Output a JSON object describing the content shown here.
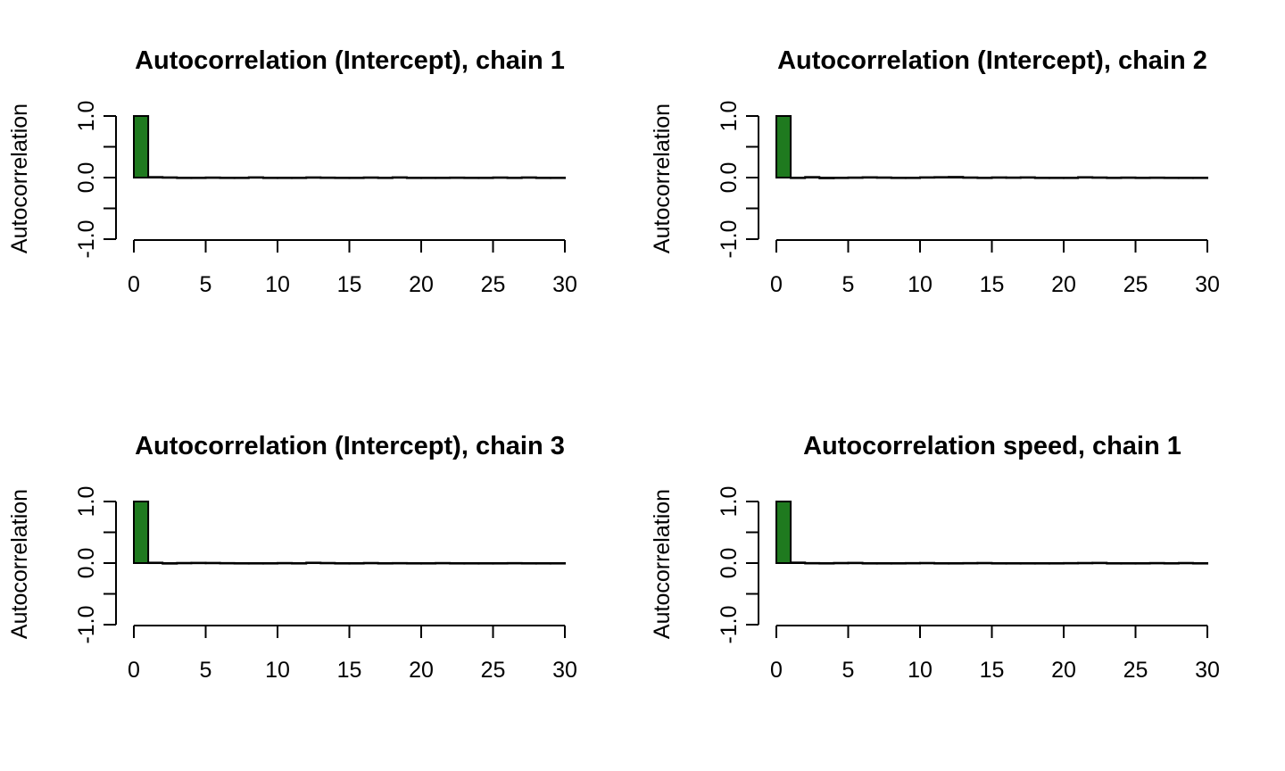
{
  "colors": {
    "bar_fill": "#1f7a1f",
    "axis": "#000000"
  },
  "chart_data": [
    {
      "type": "bar",
      "title": "Autocorrelation (Intercept), chain 1",
      "ylabel": "Autocorrelation",
      "xlabel": "",
      "xlim": [
        0,
        30
      ],
      "ylim": [
        -1,
        1
      ],
      "x_ticks": [
        "0",
        "5",
        "10",
        "15",
        "20",
        "25",
        "30"
      ],
      "y_ticks": [
        "-1.0",
        "",
        "0.0",
        "",
        "1.0"
      ],
      "lags": [
        0,
        1,
        2,
        3,
        4,
        5,
        6,
        7,
        8,
        9,
        10,
        11,
        12,
        13,
        14,
        15,
        16,
        17,
        18,
        19,
        20,
        21,
        22,
        23,
        24,
        25,
        26,
        27,
        28,
        29
      ],
      "values": [
        1.0,
        0.01,
        0.005,
        -0.005,
        0.0,
        0.003,
        -0.002,
        0.0,
        0.006,
        -0.004,
        -0.006,
        -0.002,
        0.005,
        0.002,
        -0.003,
        0.0,
        0.004,
        -0.003,
        0.006,
        -0.002,
        0.0,
        -0.005,
        0.002,
        0.0,
        -0.003,
        0.004,
        0.0,
        0.005,
        -0.002,
        0.0
      ]
    },
    {
      "type": "bar",
      "title": "Autocorrelation (Intercept), chain 2",
      "ylabel": "Autocorrelation",
      "xlabel": "",
      "xlim": [
        0,
        30
      ],
      "ylim": [
        -1,
        1
      ],
      "x_ticks": [
        "0",
        "5",
        "10",
        "15",
        "20",
        "25",
        "30"
      ],
      "y_ticks": [
        "-1.0",
        "",
        "0.0",
        "",
        "1.0"
      ],
      "lags": [
        0,
        1,
        2,
        3,
        4,
        5,
        6,
        7,
        8,
        9,
        10,
        11,
        12,
        13,
        14,
        15,
        16,
        17,
        18,
        19,
        20,
        21,
        22,
        23,
        24,
        25,
        26,
        27,
        28,
        29
      ],
      "values": [
        1.0,
        -0.005,
        0.01,
        -0.012,
        -0.006,
        0.003,
        0.007,
        0.004,
        -0.002,
        -0.008,
        0.006,
        0.009,
        0.012,
        0.004,
        -0.007,
        0.005,
        0.003,
        0.006,
        -0.003,
        -0.005,
        0.0,
        0.008,
        0.004,
        -0.002,
        0.003,
        -0.004,
        0.002,
        -0.003,
        0.0,
        0.0
      ]
    },
    {
      "type": "bar",
      "title": "Autocorrelation (Intercept), chain 3",
      "ylabel": "Autocorrelation",
      "xlabel": "",
      "xlim": [
        0,
        30
      ],
      "ylim": [
        -1,
        1
      ],
      "x_ticks": [
        "0",
        "5",
        "10",
        "15",
        "20",
        "25",
        "30"
      ],
      "y_ticks": [
        "-1.0",
        "",
        "0.0",
        "",
        "1.0"
      ],
      "lags": [
        0,
        1,
        2,
        3,
        4,
        5,
        6,
        7,
        8,
        9,
        10,
        11,
        12,
        13,
        14,
        15,
        16,
        17,
        18,
        19,
        20,
        21,
        22,
        23,
        24,
        25,
        26,
        27,
        28,
        29
      ],
      "values": [
        1.0,
        0.008,
        -0.01,
        0.004,
        0.006,
        0.005,
        0.002,
        -0.006,
        -0.004,
        0.0,
        0.003,
        -0.002,
        0.008,
        0.004,
        -0.005,
        -0.003,
        0.004,
        0.0,
        0.002,
        -0.003,
        0.0,
        0.003,
        -0.006,
        -0.008,
        0.0,
        -0.004,
        0.002,
        0.0,
        -0.002,
        0.0
      ]
    },
    {
      "type": "bar",
      "title": "Autocorrelation speed, chain 1",
      "ylabel": "Autocorrelation",
      "xlabel": "",
      "xlim": [
        0,
        30
      ],
      "ylim": [
        -1,
        1
      ],
      "x_ticks": [
        "0",
        "5",
        "10",
        "15",
        "20",
        "25",
        "30"
      ],
      "y_ticks": [
        "-1.0",
        "",
        "0.0",
        "",
        "1.0"
      ],
      "lags": [
        0,
        1,
        2,
        3,
        4,
        5,
        6,
        7,
        8,
        9,
        10,
        11,
        12,
        13,
        14,
        15,
        16,
        17,
        18,
        19,
        20,
        21,
        22,
        23,
        24,
        25,
        26,
        27,
        28,
        29
      ],
      "values": [
        1.0,
        0.01,
        0.002,
        -0.003,
        0.004,
        0.006,
        0.0,
        -0.002,
        -0.003,
        0.002,
        0.004,
        0.0,
        -0.003,
        0.002,
        0.004,
        -0.002,
        0.0,
        -0.004,
        -0.006,
        0.0,
        0.002,
        0.004,
        0.006,
        -0.002,
        -0.004,
        0.0,
        0.003,
        -0.002,
        0.004,
        -0.006
      ]
    }
  ]
}
